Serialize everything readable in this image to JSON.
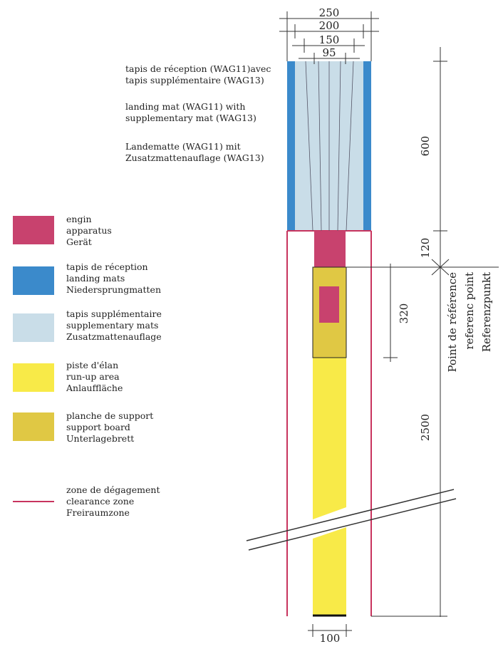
{
  "colors": {
    "apparatus": "#c8426e",
    "landing_mats": "#3b8acb",
    "supplementary_mats": "#c9dde8",
    "run_up": "#f8ea48",
    "support_board": "#e0c844",
    "clearance": "#c8345e",
    "line": "#333333"
  },
  "top_labels": [
    {
      "line1": "tapis de réception (WAG11)avec",
      "line2": "tapis supplémentaire (WAG13)"
    },
    {
      "line1": "landing mat (WAG11) with",
      "line2": "supplementary mat (WAG13)"
    },
    {
      "line1": "Landematte (WAG11) mit",
      "line2": "Zusatzmattenauflage (WAG13)"
    }
  ],
  "legend": [
    {
      "key": "apparatus",
      "lines": [
        "engin",
        "apparatus",
        "Gerät"
      ]
    },
    {
      "key": "landing_mats",
      "lines": [
        "tapis de réception",
        "landing mats",
        "Niedersprungmatten"
      ]
    },
    {
      "key": "supplementary_mats",
      "lines": [
        "tapis supplémentaire",
        "supplementary mats",
        "Zusatzmattenauflage"
      ]
    },
    {
      "key": "run_up",
      "lines": [
        "piste d'élan",
        "run-up area",
        "Anlauffläche"
      ]
    },
    {
      "key": "support_board",
      "lines": [
        "planche de support",
        "support board",
        "Unterlagebrett"
      ]
    },
    {
      "key": "clearance",
      "lines": [
        "zone de dégagement",
        "clearance zone",
        "Freiraumzone"
      ]
    }
  ],
  "dimensions": {
    "width_250": "250",
    "width_200": "200",
    "width_150": "150",
    "width_95": "95",
    "length_600": "600",
    "length_120": "120",
    "length_320": "320",
    "length_2500": "2500",
    "width_100": "100"
  },
  "reference_point": [
    "Point de référence",
    "referenc point",
    "Referenzpunkt"
  ]
}
